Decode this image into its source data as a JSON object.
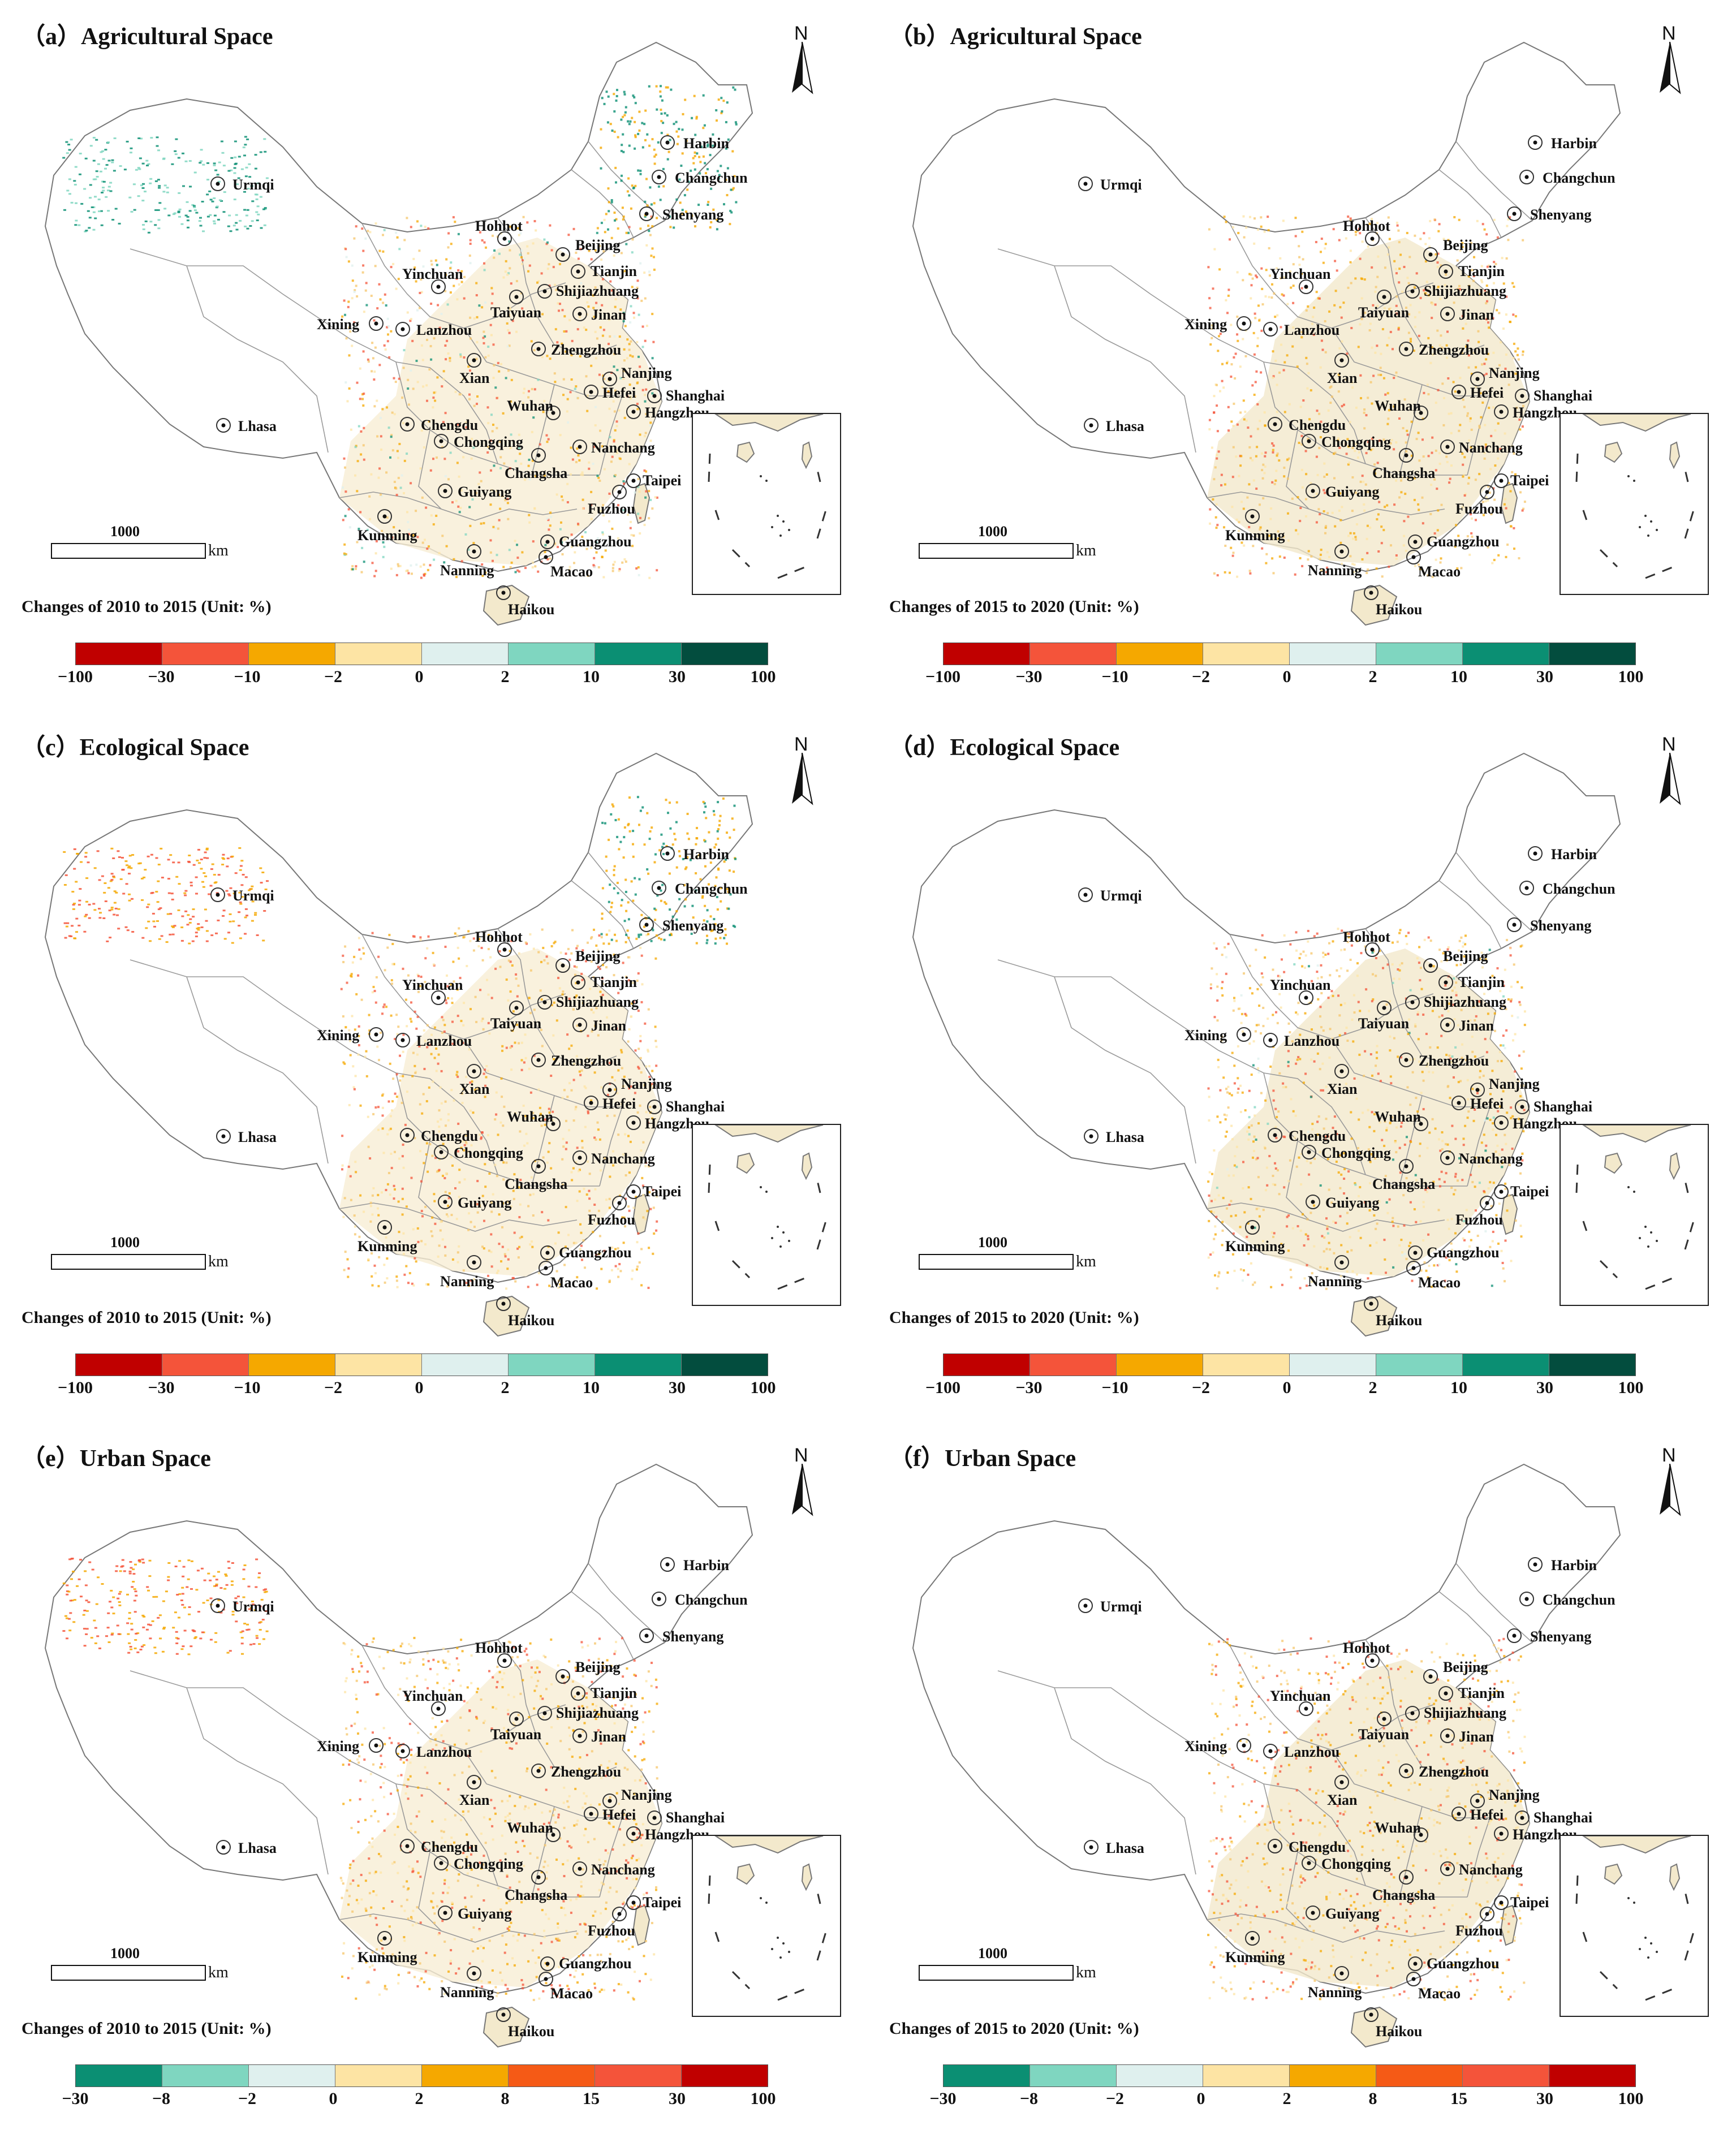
{
  "panels": [
    {
      "title": "（a）Agricultural Space",
      "change_label": "Changes of 2010  to 2015  (Unit: %)",
      "legend_set": "space"
    },
    {
      "title": "（b）Agricultural Space",
      "change_label": "Changes of 2015  to 2020  (Unit: %)",
      "legend_set": "space"
    },
    {
      "title": "（c）Ecological Space",
      "change_label": "Changes of 2010  to 2015  (Unit: %)",
      "legend_set": "space"
    },
    {
      "title": "（d）Ecological Space",
      "change_label": "Changes of 2015  to 2020  (Unit: %)",
      "legend_set": "space"
    },
    {
      "title": "（e）Urban Space",
      "change_label": "Changes of 2010 to 2015  (Unit: %)",
      "legend_set": "urban"
    },
    {
      "title": "（f）Urban Space",
      "change_label": "Changes of 2015  to 2020  (Unit: %)",
      "legend_set": "urban"
    }
  ],
  "north_label": "N",
  "scale": {
    "value": "1000",
    "unit": "km"
  },
  "legends": {
    "space": {
      "ticks": [
        "−100",
        "−30",
        "−10",
        "−2",
        "0",
        "2",
        "10",
        "30",
        "100"
      ],
      "colors": [
        "#c00000",
        "#f4543a",
        "#f5a800",
        "#fde4a4",
        "#dff0ee",
        "#7fd6c0",
        "#0b8f73",
        "#034d3e"
      ]
    },
    "urban": {
      "ticks": [
        "−30",
        "−8",
        "−2",
        "0",
        "2",
        "8",
        "15",
        "30",
        "100"
      ],
      "colors": [
        "#0b8f73",
        "#7fd6c0",
        "#dff0ee",
        "#fde4a4",
        "#f5a800",
        "#f55a16",
        "#f4543a",
        "#c00000"
      ]
    }
  },
  "cities": [
    "Harbin",
    "Changchun",
    "Urmqi",
    "Shenyang",
    "Hohhot",
    "Beijing",
    "Tianjin",
    "Yinchuan",
    "Shijiazhuang",
    "Xining",
    "Taiyuan",
    "Jinan",
    "Lanzhou",
    "Zhengzhou",
    "Xian",
    "Nanjing",
    "Shanghai",
    "Lhasa",
    "Wuhan",
    "Hefei",
    "Hangzhou",
    "Chengdu",
    "Chongqing",
    "Nanchang",
    "Changsha",
    "Taipei",
    "Guiyang",
    "Fuzhou",
    "Kunming",
    "Guangzhou",
    "Macao",
    "Nanning",
    "Haikou"
  ]
}
